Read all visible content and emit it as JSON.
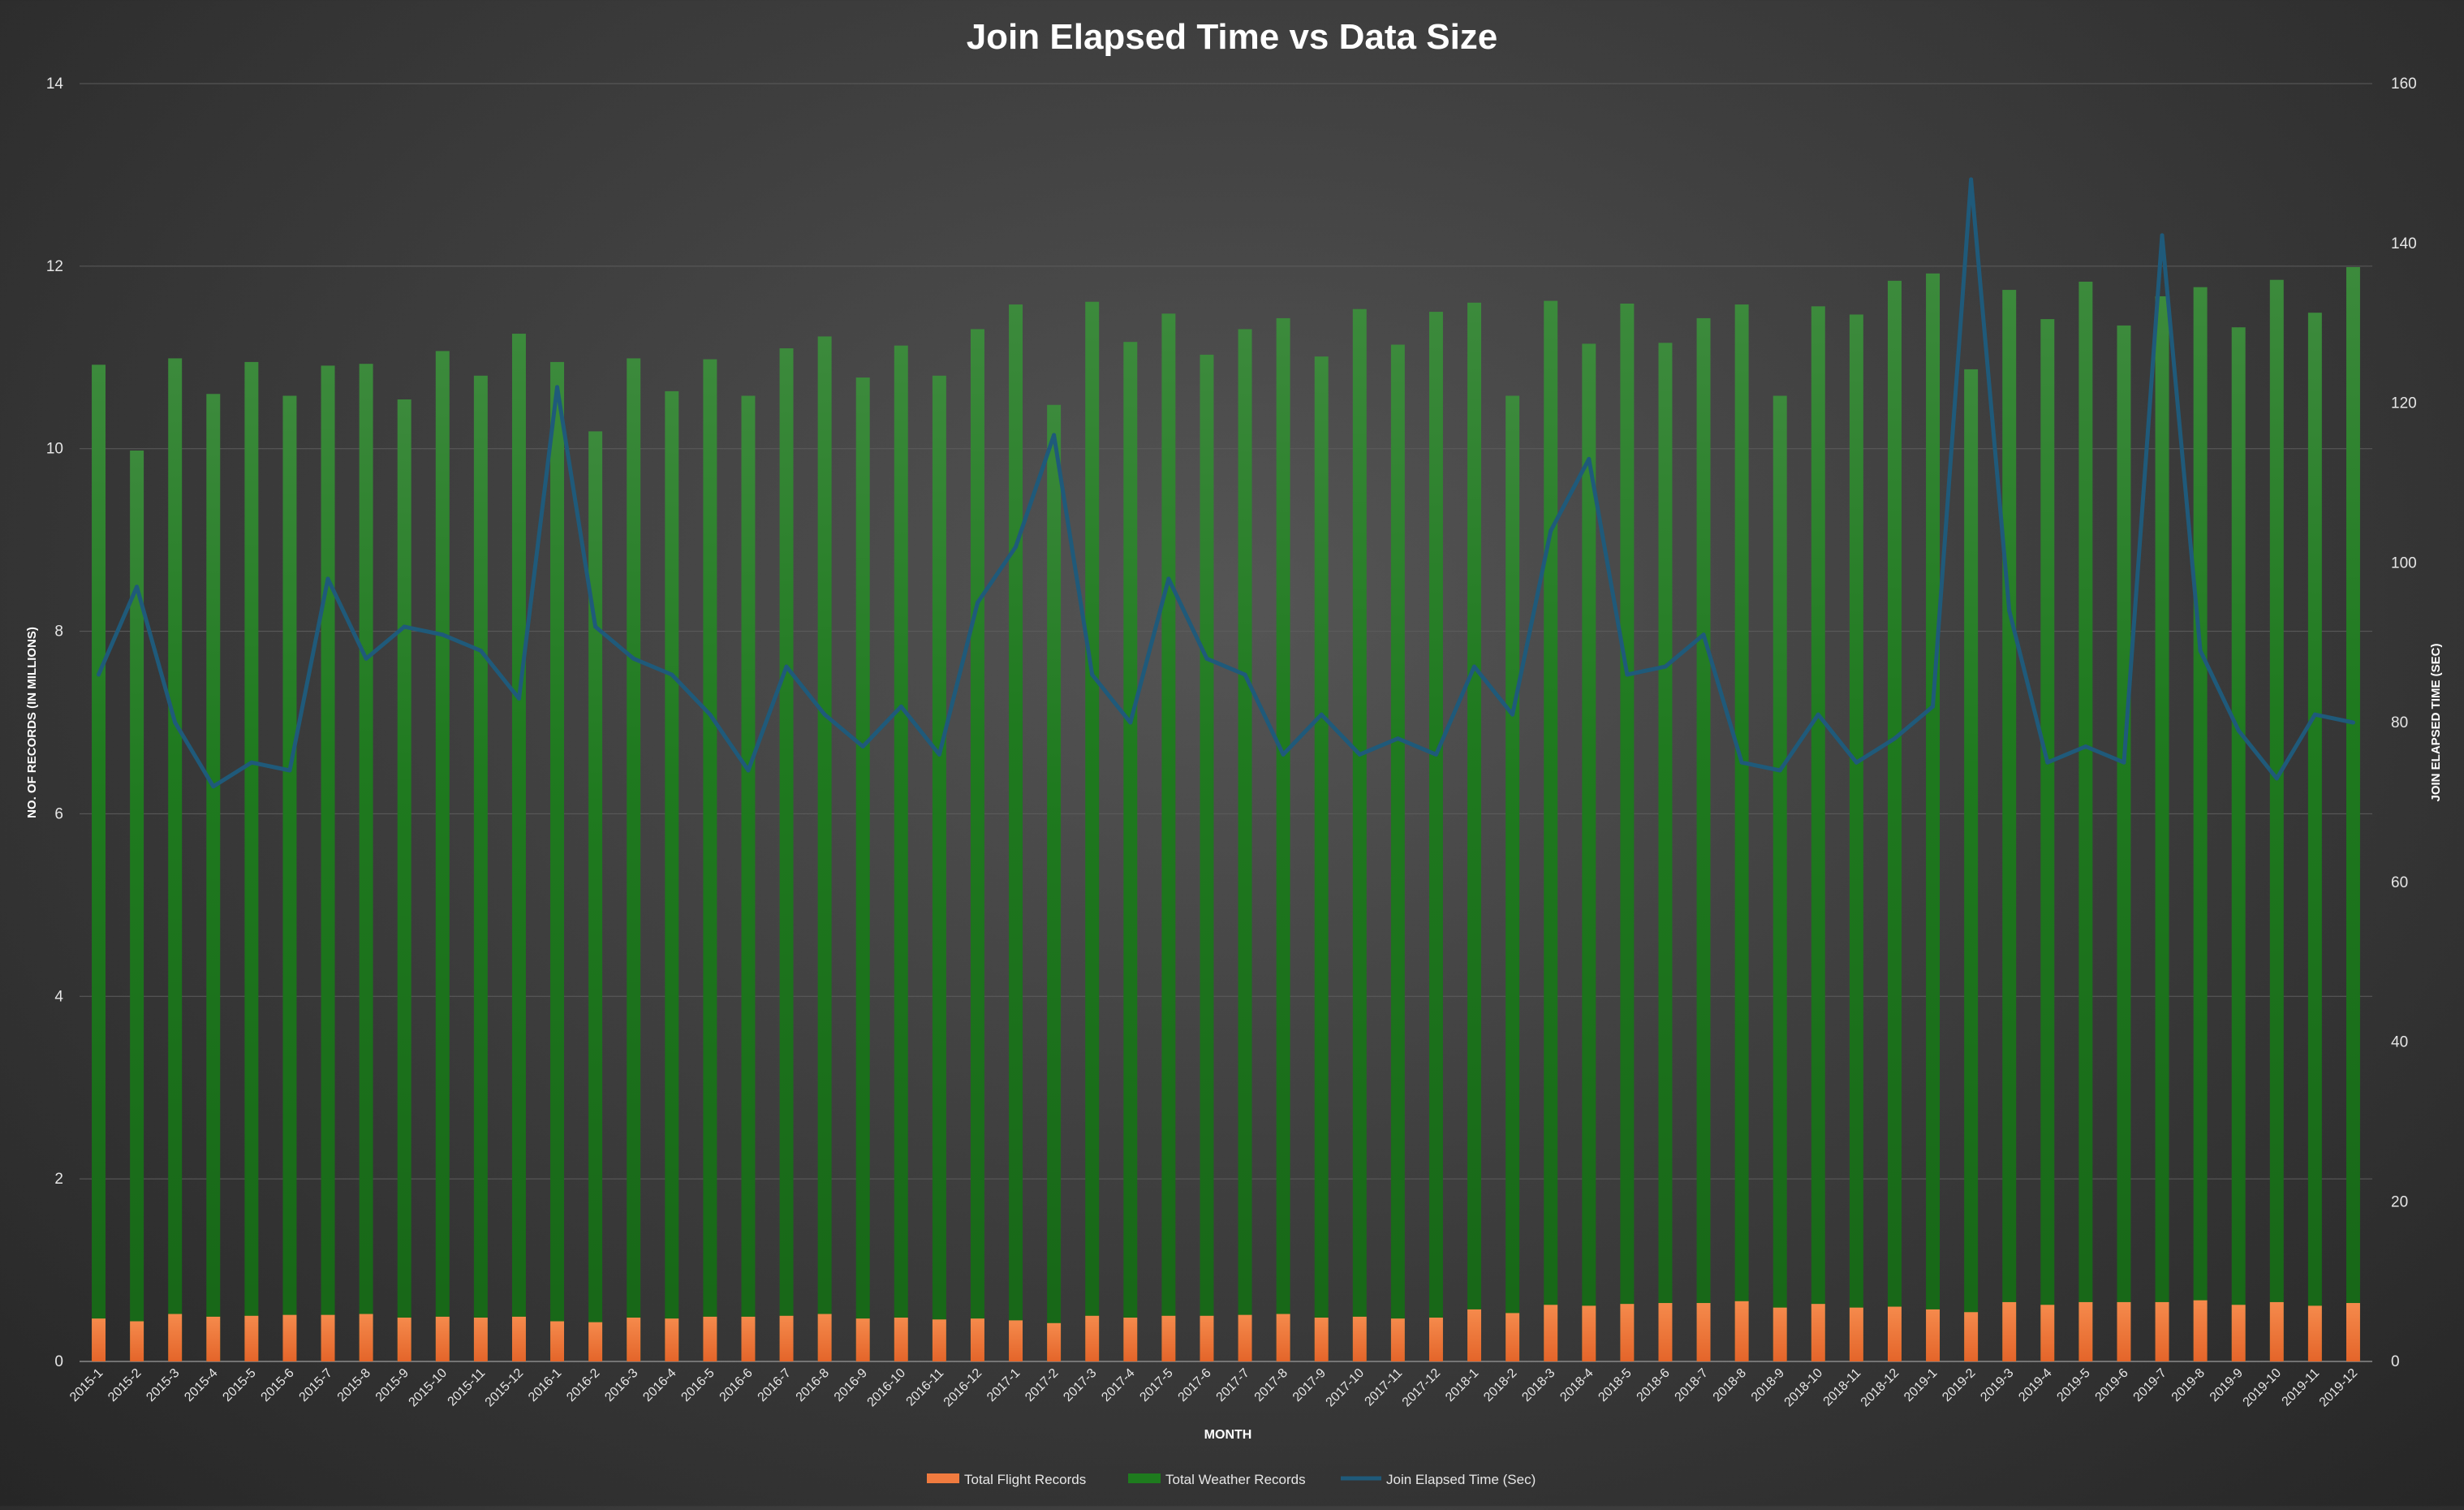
{
  "chart_data": {
    "type": "bar",
    "title": "Join Elapsed Time vs Data Size",
    "xlabel": "MONTH",
    "ylabel": "NO. OF RECORDS (IN MILLIONS)",
    "y2label": "JOIN ELAPSED TIME (SEC)",
    "ylim": [
      0,
      14
    ],
    "y2lim": [
      0,
      160
    ],
    "yticks": [
      0,
      2,
      4,
      6,
      8,
      10,
      12,
      14
    ],
    "y2ticks": [
      0,
      20,
      40,
      60,
      80,
      100,
      120,
      140,
      160
    ],
    "grid": true,
    "legend_position": "bottom",
    "categories": [
      "2015-1",
      "2015-2",
      "2015-3",
      "2015-4",
      "2015-5",
      "2015-6",
      "2015-7",
      "2015-8",
      "2015-9",
      "2015-10",
      "2015-11",
      "2015-12",
      "2016-1",
      "2016-2",
      "2016-3",
      "2016-4",
      "2016-5",
      "2016-6",
      "2016-7",
      "2016-8",
      "2016-9",
      "2016-10",
      "2016-11",
      "2016-12",
      "2017-1",
      "2017-2",
      "2017-3",
      "2017-4",
      "2017-5",
      "2017-6",
      "2017-7",
      "2017-8",
      "2017-9",
      "2017-10",
      "2017-11",
      "2017-12",
      "2018-1",
      "2018-2",
      "2018-3",
      "2018-4",
      "2018-5",
      "2018-6",
      "2018-7",
      "2018-8",
      "2018-9",
      "2018-10",
      "2018-11",
      "2018-12",
      "2019-1",
      "2019-2",
      "2019-3",
      "2019-4",
      "2019-5",
      "2019-6",
      "2019-7",
      "2019-8",
      "2019-9",
      "2019-10",
      "2019-11",
      "2019-12"
    ],
    "series": [
      {
        "name": "Total Flight Records",
        "kind": "bar",
        "axis": "left",
        "color": "#f07b3f",
        "values": [
          0.47,
          0.44,
          0.52,
          0.49,
          0.5,
          0.51,
          0.51,
          0.52,
          0.48,
          0.49,
          0.48,
          0.49,
          0.44,
          0.43,
          0.48,
          0.47,
          0.49,
          0.49,
          0.5,
          0.52,
          0.47,
          0.48,
          0.46,
          0.47,
          0.45,
          0.42,
          0.5,
          0.48,
          0.5,
          0.5,
          0.51,
          0.52,
          0.48,
          0.49,
          0.47,
          0.48,
          0.57,
          0.53,
          0.62,
          0.61,
          0.63,
          0.64,
          0.64,
          0.66,
          0.59,
          0.63,
          0.59,
          0.6,
          0.57,
          0.54,
          0.65,
          0.62,
          0.65,
          0.65,
          0.65,
          0.67,
          0.62,
          0.65,
          0.61,
          0.64
        ]
      },
      {
        "name": "Total Weather Records",
        "kind": "bar",
        "axis": "left",
        "color": "#1e7b1e",
        "values": [
          10.92,
          9.98,
          10.99,
          10.6,
          10.95,
          10.58,
          10.91,
          10.93,
          10.54,
          11.07,
          10.8,
          11.26,
          10.95,
          10.19,
          10.99,
          10.63,
          10.98,
          10.58,
          11.1,
          11.23,
          10.78,
          11.13,
          10.8,
          11.31,
          11.58,
          10.48,
          11.61,
          11.17,
          11.48,
          11.03,
          11.31,
          11.43,
          11.01,
          11.53,
          11.14,
          11.5,
          11.6,
          10.58,
          11.62,
          11.15,
          11.59,
          11.16,
          11.43,
          11.58,
          10.58,
          11.56,
          11.47,
          11.84,
          11.92,
          10.87,
          11.74,
          11.42,
          11.83,
          11.35,
          11.67,
          11.77,
          11.33,
          11.85,
          11.49,
          11.99
        ]
      },
      {
        "name": "Join Elapsed Time (Sec)",
        "kind": "line",
        "axis": "right",
        "color": "#1f5a7a",
        "values": [
          86,
          97,
          80,
          72,
          75,
          74,
          98,
          88,
          92,
          91,
          89,
          83,
          122,
          92,
          88,
          86,
          81,
          74,
          87,
          81,
          77,
          82,
          76,
          95,
          102,
          116,
          86,
          80,
          98,
          88,
          86,
          76,
          81,
          76,
          78,
          76,
          87,
          81,
          104,
          113,
          86,
          87,
          91,
          75,
          74,
          81,
          75,
          78,
          82,
          148,
          94,
          75,
          77,
          75,
          141,
          89,
          79,
          73,
          81,
          80
        ]
      }
    ]
  }
}
